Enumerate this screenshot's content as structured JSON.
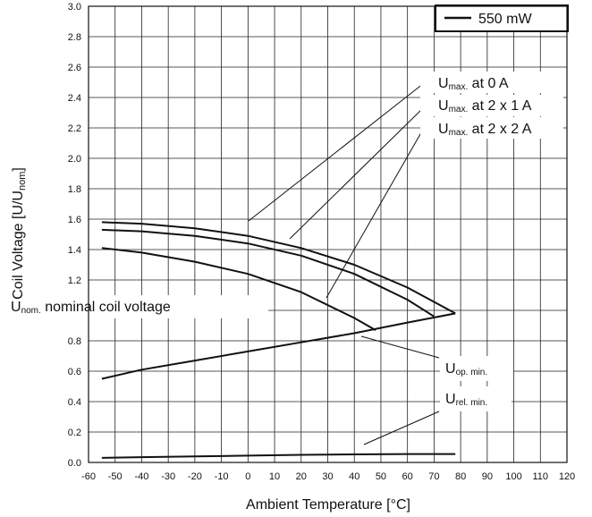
{
  "chart_data": {
    "type": "line",
    "xlabel": "Ambient Temperature [°C]",
    "ylabel_main": "Coil Voltage [U/U",
    "ylabel_sub": "nom",
    "ylabel_end": "]",
    "xlim": [
      -60,
      120
    ],
    "ylim": [
      0,
      3.0
    ],
    "x_ticks": [
      -60,
      -50,
      -40,
      -30,
      -20,
      -10,
      0,
      10,
      20,
      30,
      40,
      50,
      60,
      70,
      80,
      90,
      100,
      110,
      120
    ],
    "y_ticks": [
      "0.0",
      "0.2",
      "0.4",
      "0.6",
      "0.8",
      "1.0",
      "1.2",
      "1.4",
      "1.6",
      "1.8",
      "2.0",
      "2.2",
      "2.4",
      "2.6",
      "2.8",
      "3.0"
    ],
    "legend": {
      "label": "550 mW",
      "position": "top-right"
    },
    "grid": true,
    "series": [
      {
        "id": "umax0",
        "x": [
          -55,
          -40,
          -20,
          0,
          20,
          40,
          60,
          78
        ],
        "y": [
          1.58,
          1.57,
          1.54,
          1.49,
          1.41,
          1.3,
          1.15,
          0.98
        ]
      },
      {
        "id": "umax1",
        "x": [
          -55,
          -40,
          -20,
          0,
          20,
          40,
          60,
          70
        ],
        "y": [
          1.53,
          1.52,
          1.49,
          1.44,
          1.36,
          1.24,
          1.07,
          0.96
        ]
      },
      {
        "id": "umax2",
        "x": [
          -55,
          -40,
          -20,
          0,
          20,
          40,
          48
        ],
        "y": [
          1.41,
          1.38,
          1.32,
          1.24,
          1.12,
          0.95,
          0.87
        ]
      },
      {
        "id": "uop",
        "x": [
          -55,
          -40,
          -20,
          0,
          20,
          40,
          60,
          78
        ],
        "y": [
          0.55,
          0.61,
          0.67,
          0.73,
          0.79,
          0.85,
          0.92,
          0.98
        ]
      },
      {
        "id": "urel",
        "x": [
          -55,
          -40,
          -20,
          0,
          20,
          40,
          60,
          78
        ],
        "y": [
          0.03,
          0.035,
          0.04,
          0.045,
          0.05,
          0.053,
          0.055,
          0.055
        ]
      }
    ],
    "annotations": [
      {
        "main": "U",
        "sub": "max.",
        "rest": " at 0 A"
      },
      {
        "main": "U",
        "sub": "max.",
        "rest": " at 2 x 1 A"
      },
      {
        "main": "U",
        "sub": "max.",
        "rest": " at 2 x 2 A"
      },
      {
        "main": "U",
        "sub": "nom.",
        "rest": " nominal coil voltage"
      },
      {
        "main": "U",
        "sub": "op. min.",
        "rest": ""
      },
      {
        "main": "U",
        "sub": "rel. min.",
        "rest": ""
      }
    ]
  }
}
